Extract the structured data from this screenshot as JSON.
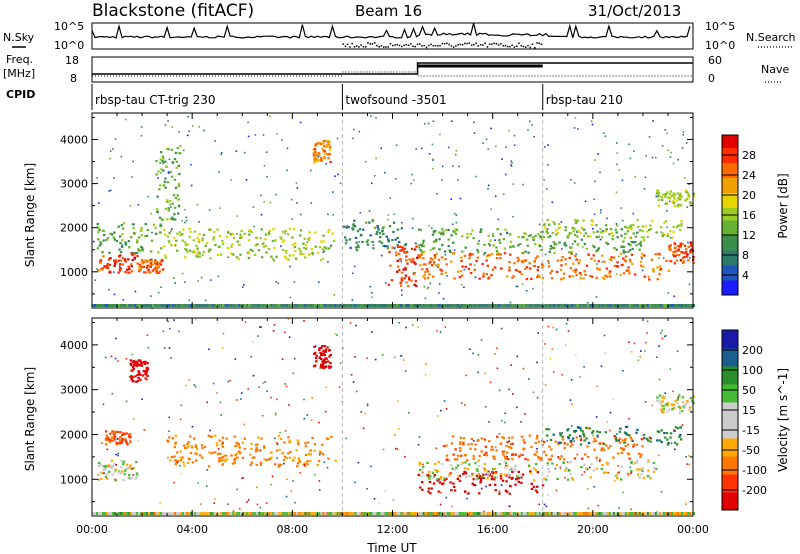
{
  "header": {
    "station": "Blackstone (fitACF)",
    "beam": "Beam 16",
    "date": "31/Oct/2013"
  },
  "side_labels": {
    "nsky": "N.Sky",
    "nsearch": "N.Search",
    "freq_line1": "Freq.",
    "freq_line2": "[MHz]",
    "nave": "Nave",
    "cpid": "CPID"
  },
  "noise_axis": {
    "left_ticks": [
      "10^5",
      "10^0"
    ],
    "right_ticks": [
      "10^5",
      "10^0"
    ]
  },
  "freq_axis": {
    "left_ticks": [
      "18",
      "8"
    ],
    "right_ticks": [
      "60",
      "0"
    ]
  },
  "cpid_segments": [
    {
      "label": "rbsp-tau CT-trig 230",
      "start_hour": 0,
      "end_hour": 10
    },
    {
      "label": "twofsound -3501",
      "start_hour": 10,
      "end_hour": 18
    },
    {
      "label": "rbsp-tau 210",
      "start_hour": 18,
      "end_hour": 24
    }
  ],
  "colors": {
    "power_scale": [
      "#1a1aff",
      "#2255bb",
      "#2c7a6a",
      "#3a8f4a",
      "#66b033",
      "#99cc22",
      "#e6d400",
      "#f0a000",
      "#ff6a00",
      "#ff2a00",
      "#e00000"
    ],
    "velocity_scale": [
      "#e00000",
      "#ff3300",
      "#ff7700",
      "#ffaa00",
      "#cccccc",
      "#cccccc",
      "#44bb33",
      "#2a8f2a",
      "#1a5f8f",
      "#1a1aaa"
    ],
    "ground_scatter": "#cccccc"
  },
  "chart_data": [
    {
      "type": "heatmap",
      "panel": "power",
      "ylabel": "Slant Range [km]",
      "ylim": [
        180,
        4600
      ],
      "y_ticks": [
        1000,
        2000,
        3000,
        4000
      ],
      "xlim": [
        0,
        24
      ],
      "colorbar": {
        "label": "Power [dB]",
        "range": [
          0,
          32
        ],
        "ticks": [
          4,
          8,
          12,
          16,
          20,
          24,
          28
        ]
      },
      "features": [
        {
          "x": [
            0.2,
            1.8
          ],
          "y": [
            1000,
            1450
          ],
          "level": 28
        },
        {
          "x": [
            0.1,
            2.8
          ],
          "y": [
            1450,
            2150
          ],
          "level": 12
        },
        {
          "x": [
            1.8,
            2.8
          ],
          "y": [
            1000,
            1300
          ],
          "level": 26
        },
        {
          "x": [
            2.8,
            9.7
          ],
          "y": [
            1300,
            2000
          ],
          "level": 16
        },
        {
          "x": [
            2.5,
            3.5
          ],
          "y": [
            2200,
            3900
          ],
          "level": 12
        },
        {
          "x": [
            8.8,
            9.5
          ],
          "y": [
            3500,
            4000
          ],
          "level": 24
        },
        {
          "x": [
            10.0,
            12.5
          ],
          "y": [
            1500,
            2200
          ],
          "level": 8
        },
        {
          "x": [
            11.8,
            13.0
          ],
          "y": [
            700,
            1600
          ],
          "level": 28
        },
        {
          "x": [
            13.0,
            23.0
          ],
          "y": [
            850,
            1450
          ],
          "level": 26
        },
        {
          "x": [
            13.0,
            22.0
          ],
          "y": [
            1450,
            2000
          ],
          "level": 12
        },
        {
          "x": [
            18.0,
            23.5
          ],
          "y": [
            1800,
            2200
          ],
          "level": 16
        },
        {
          "x": [
            23.0,
            24.0
          ],
          "y": [
            1200,
            1700
          ],
          "level": 28
        },
        {
          "x": [
            22.5,
            24.0
          ],
          "y": [
            2500,
            2900
          ],
          "level": 16
        }
      ]
    },
    {
      "type": "heatmap",
      "panel": "velocity",
      "ylabel": "Slant Range [km]",
      "xlabel": "Time UT",
      "ylim": [
        180,
        4600
      ],
      "y_ticks": [
        1000,
        2000,
        3000,
        4000
      ],
      "xlim": [
        0,
        24
      ],
      "x_tick_labels": [
        "00:00",
        "04:00",
        "08:00",
        "12:00",
        "16:00",
        "20:00",
        "00:00"
      ],
      "colorbar": {
        "label": "Velocity [m s^-1]",
        "ticks": [
          200,
          100,
          50,
          15,
          -15,
          -50,
          -100,
          -200
        ]
      },
      "features": [
        {
          "x": [
            0.2,
            1.8
          ],
          "y": [
            1000,
            1450
          ],
          "level": 0
        },
        {
          "x": [
            0.5,
            1.5
          ],
          "y": [
            1800,
            2100
          ],
          "level": -80
        },
        {
          "x": [
            2.8,
            9.7
          ],
          "y": [
            1300,
            2000
          ],
          "level": -40
        },
        {
          "x": [
            1.5,
            2.2
          ],
          "y": [
            3200,
            3700
          ],
          "level": -200
        },
        {
          "x": [
            8.8,
            9.5
          ],
          "y": [
            3500,
            4000
          ],
          "level": -180
        },
        {
          "x": [
            13.0,
            18.0
          ],
          "y": [
            700,
            1200
          ],
          "level": -200
        },
        {
          "x": [
            13.0,
            22.5
          ],
          "y": [
            1000,
            1450
          ],
          "level": 0
        },
        {
          "x": [
            14.0,
            22.0
          ],
          "y": [
            1450,
            2000
          ],
          "level": -60
        },
        {
          "x": [
            18.0,
            23.5
          ],
          "y": [
            1800,
            2200
          ],
          "level": 60
        },
        {
          "x": [
            22.5,
            24.0
          ],
          "y": [
            2500,
            2900
          ],
          "level": 0
        }
      ]
    }
  ]
}
